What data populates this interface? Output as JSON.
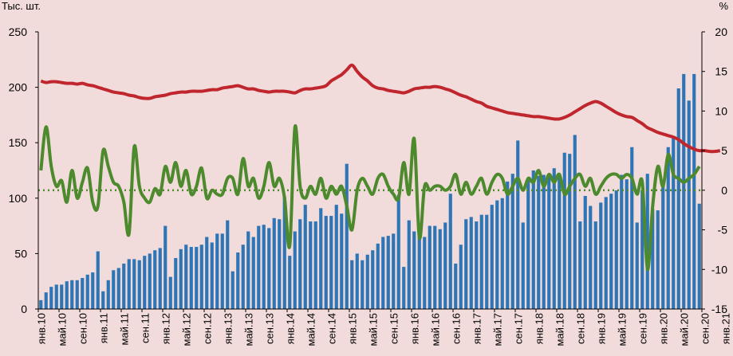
{
  "chart_data": {
    "type": "combo-bar-line",
    "left_axis_unit": "Тыс. шт.",
    "right_axis_unit": "%",
    "y_left_range": [
      0,
      250
    ],
    "y_left_ticks": [
      "0",
      "50",
      "100",
      "150",
      "200",
      "250"
    ],
    "y_right_range": [
      -15,
      20
    ],
    "y_right_ticks": [
      "-15",
      "-10",
      "-5",
      "0",
      "5",
      "10",
      "15",
      "20"
    ],
    "x_start": "2010-01",
    "x_tick_labels": [
      "янв.10",
      "май.10",
      "сен.10",
      "янв.11",
      "май.11",
      "сен.11",
      "янв.12",
      "май.12",
      "сен.12",
      "янв.13",
      "май.13",
      "сен.13",
      "янв.14",
      "май.14",
      "сен.14",
      "янв.15",
      "май.15",
      "сен.15",
      "янв.16",
      "май.16",
      "сен.16",
      "янв.17",
      "май.17",
      "сен.17",
      "янв.18",
      "май.18",
      "сен.18",
      "янв.19",
      "май.19",
      "сен.19",
      "янв.20",
      "май.20",
      "сен.20",
      "янв.21"
    ],
    "dotted_reference_line": {
      "axis": "right",
      "value": 0
    },
    "bar_color": "#2e75b6",
    "red_line_color": "#c0262d",
    "green_line_color": "#4d8a2e",
    "dotted_line_color": "#4d8a2e",
    "series": [
      {
        "type": "bar",
        "axis": "left",
        "values": [
          8,
          15,
          20,
          22,
          22,
          25,
          26,
          26,
          28,
          31,
          33,
          52,
          16,
          26,
          35,
          37,
          41,
          45,
          45,
          44,
          48,
          50,
          53,
          55,
          75,
          29,
          46,
          54,
          58,
          56,
          56,
          58,
          65,
          60,
          68,
          68,
          80,
          34,
          51,
          58,
          70,
          65,
          75,
          76,
          73,
          82,
          81,
          101,
          48,
          70,
          81,
          94,
          79,
          79,
          91,
          84,
          84,
          94,
          86,
          131,
          44,
          50,
          44,
          49,
          53,
          59,
          65,
          66,
          68,
          103,
          38,
          80,
          70,
          67,
          65,
          75,
          75,
          72,
          78,
          104,
          41,
          58,
          81,
          83,
          79,
          85,
          85,
          94,
          98,
          100,
          115,
          122,
          152,
          78,
          118,
          125,
          120,
          121,
          122,
          127,
          122,
          141,
          140,
          157,
          79,
          102,
          93,
          79,
          96,
          101,
          104,
          107,
          121,
          117,
          146,
          78,
          107,
          122,
          90,
          89,
          116,
          146,
          155,
          199,
          212,
          188,
          212,
          95
        ]
      },
      {
        "type": "line",
        "axis": "right",
        "values": [
          13.8,
          13.6,
          13.7,
          13.7,
          13.6,
          13.5,
          13.5,
          13.4,
          13.5,
          13.3,
          13.2,
          13.0,
          12.8,
          12.6,
          12.4,
          12.3,
          12.2,
          12.0,
          11.9,
          11.7,
          11.6,
          11.6,
          11.8,
          11.9,
          12.0,
          12.2,
          12.3,
          12.4,
          12.4,
          12.5,
          12.5,
          12.5,
          12.6,
          12.7,
          12.7,
          12.9,
          13.0,
          13.1,
          13.2,
          13.0,
          12.8,
          12.8,
          12.6,
          12.5,
          12.4,
          12.5,
          12.5,
          12.5,
          12.4,
          12.3,
          12.6,
          12.8,
          12.8,
          12.9,
          13.0,
          13.2,
          13.8,
          14.2,
          14.6,
          15.2,
          15.8,
          15.0,
          14.3,
          13.8,
          13.2,
          12.9,
          12.8,
          12.6,
          12.5,
          12.4,
          12.3,
          12.5,
          12.8,
          12.9,
          13.0,
          13.0,
          13.1,
          13.0,
          12.8,
          12.6,
          12.3,
          12.0,
          11.8,
          11.5,
          11.2,
          11.0,
          10.6,
          10.4,
          10.2,
          10.0,
          9.8,
          9.7,
          9.6,
          9.5,
          9.4,
          9.3,
          9.3,
          9.2,
          9.1,
          9.0,
          9.0,
          9.2,
          9.5,
          9.9,
          10.3,
          10.7,
          11.0,
          11.2,
          11.0,
          10.6,
          10.2,
          9.8,
          9.5,
          9.3,
          9.2,
          8.8,
          8.4,
          7.9,
          7.6,
          7.3,
          7.1,
          6.9,
          6.7,
          6.4,
          5.9,
          5.5,
          5.2,
          5.0,
          5.0,
          4.9,
          4.9,
          5.0
        ]
      },
      {
        "type": "line",
        "axis": "right",
        "values": [
          2.5,
          8.0,
          3.0,
          0.5,
          1.2,
          -1.5,
          2.5,
          -1.0,
          1.0,
          2.8,
          -1.5,
          -2.0,
          5.0,
          3.0,
          1.0,
          0.5,
          -1.5,
          -5.5,
          5.5,
          0.5,
          -1.0,
          -1.5,
          0.2,
          -0.5,
          3.0,
          1.0,
          3.5,
          0.5,
          2.5,
          -0.5,
          0.5,
          2.8,
          -1.0,
          0.0,
          -0.5,
          -0.5,
          1.5,
          1.5,
          -0.5,
          4.0,
          0.5,
          1.5,
          -1.0,
          0.5,
          3.5,
          0.5,
          1.5,
          -1.0,
          -7.0,
          8.0,
          0.5,
          -1.0,
          0.5,
          -0.5,
          1.5,
          -1.0,
          0.5,
          -0.5,
          0.5,
          -2.0,
          -5.0,
          0.0,
          1.5,
          0.5,
          -0.5,
          1.5,
          2.0,
          0.5,
          -0.5,
          -1.0,
          3.5,
          -0.5,
          6.5,
          -6.0,
          0.5,
          0.0,
          0.5,
          0.5,
          0.0,
          0.5,
          2.0,
          -0.5,
          1.0,
          -0.5,
          0.5,
          1.5,
          -0.5,
          1.0,
          2.0,
          1.5,
          -0.5,
          0.5,
          1.5,
          0.0,
          1.5,
          1.0,
          2.5,
          0.5,
          2.0,
          1.0,
          2.0,
          -0.5,
          0.5,
          1.5,
          2.0,
          0.5,
          1.5,
          -0.5,
          0.5,
          1.5,
          2.0,
          2.0,
          1.5,
          2.0,
          1.5,
          -0.5,
          1.0,
          -10.0,
          -2.0,
          3.0,
          0.5,
          4.5,
          2.0,
          1.5,
          1.0,
          1.5,
          2.0,
          3.0
        ]
      }
    ]
  }
}
